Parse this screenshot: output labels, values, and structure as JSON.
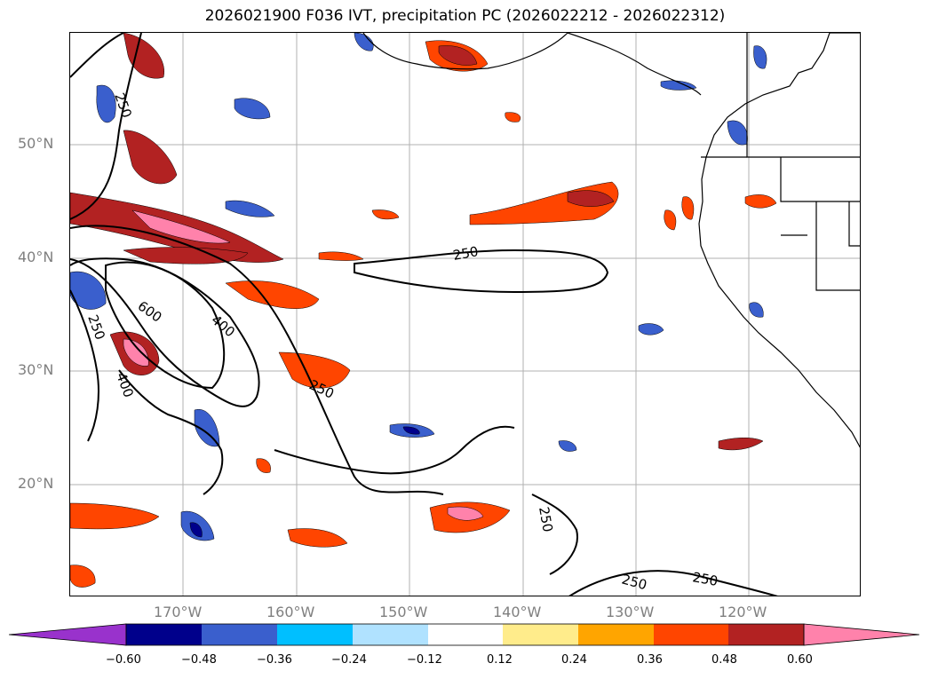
{
  "title": "2026021900 F036 IVT, precipitation PC (2026022212 - 2026022312)",
  "map": {
    "lat_labels": [
      "50°N",
      "40°N",
      "30°N",
      "20°N"
    ],
    "lon_labels": [
      "170°W",
      "160°W",
      "150°W",
      "140°W",
      "130°W",
      "120°W"
    ],
    "ivt_contour_labels": [
      "250",
      "250",
      "250",
      "250",
      "250",
      "600",
      "400",
      "400",
      "250",
      "250"
    ]
  },
  "colorbar": {
    "ticks": [
      "−0.60",
      "−0.48",
      "−0.36",
      "−0.24",
      "−0.12",
      "0.12",
      "0.24",
      "0.36",
      "0.48",
      "0.60"
    ],
    "colors": [
      "#9932cc",
      "#00008b",
      "#3a5fcd",
      "#00bfff",
      "#b0e2ff",
      "#ffffff",
      "#ffec8b",
      "#ffa500",
      "#ff4500",
      "#b22222",
      "#ff82ab"
    ]
  }
}
